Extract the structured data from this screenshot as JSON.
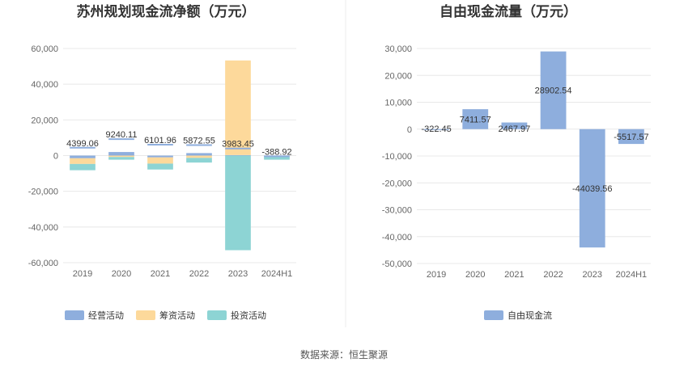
{
  "source": "数据来源：恒生聚源",
  "chart_data": [
    {
      "type": "bar",
      "stacked": true,
      "title": "苏州规划现金流净额（万元）",
      "categories": [
        "2019",
        "2020",
        "2021",
        "2022",
        "2023",
        "2024H1"
      ],
      "ylim": [
        -60000,
        60000
      ],
      "yticks": [
        60000,
        40000,
        20000,
        0,
        -20000,
        -40000,
        -60000
      ],
      "ytick_labels": [
        "60,000",
        "40,000",
        "20,000",
        "0",
        "-20,000",
        "-40,000",
        "-60,000"
      ],
      "grid": true,
      "legend_position": "bottom",
      "series": [
        {
          "name": "经营活动",
          "color": "#8eaedd",
          "values": [
            -1500,
            2000,
            -1000,
            1400,
            300,
            -100
          ]
        },
        {
          "name": "筹资活动",
          "color": "#fdd99b",
          "values": [
            -3200,
            -800,
            -3500,
            -1300,
            53000,
            -400
          ]
        },
        {
          "name": "投资活动",
          "color": "#8dd4d4",
          "values": [
            -3500,
            -1500,
            -3300,
            -2600,
            -53000,
            -1800
          ]
        }
      ],
      "net_values": [
        4399.06,
        9240.11,
        6101.96,
        5872.55,
        3983.45,
        -388.92
      ],
      "data_labels": [
        "4399.06",
        "9240.11",
        "6101.96",
        "5872.55",
        "3983.45",
        "-388.92"
      ]
    },
    {
      "type": "bar",
      "title": "自由现金流量（万元）",
      "categories": [
        "2019",
        "2020",
        "2021",
        "2022",
        "2023",
        "2024H1"
      ],
      "ylim": [
        -50000,
        30000
      ],
      "yticks": [
        30000,
        20000,
        10000,
        0,
        -10000,
        -20000,
        -30000,
        -40000,
        -50000
      ],
      "ytick_labels": [
        "30,000",
        "20,000",
        "10,000",
        "0",
        "-10,000",
        "-20,000",
        "-30,000",
        "-40,000",
        "-50,000"
      ],
      "grid": true,
      "legend_position": "bottom",
      "series": [
        {
          "name": "自由现金流",
          "color": "#8eaedd",
          "values": [
            -322.45,
            7411.57,
            2467.97,
            28902.54,
            -44039.56,
            -5517.57
          ]
        }
      ],
      "data_labels": [
        "-322.45",
        "7411.57",
        "2467.97",
        "28902.54",
        "-44039.56",
        "-5517.57"
      ]
    }
  ]
}
